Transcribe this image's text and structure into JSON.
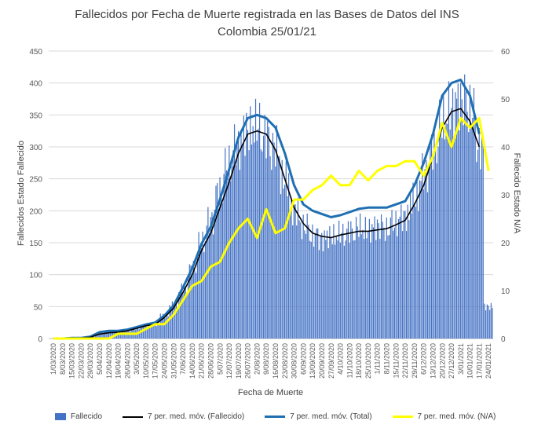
{
  "chart_data": {
    "type": "bar+line",
    "title": "Fallecidos por Fecha de Muerte registrada en las Bases de Datos del INS",
    "subtitle": "Colombia 25/01/21",
    "xlabel": "Fecha de Muerte",
    "ylabel_left": "Fallecidos Estado Fallecido",
    "ylabel_right": "Fallecido Estado N/A",
    "ylim_left": [
      0,
      450
    ],
    "ylim_right": [
      0,
      60
    ],
    "y_ticks_left": [
      "0",
      "50",
      "100",
      "150",
      "200",
      "250",
      "300",
      "350",
      "400",
      "450"
    ],
    "y_ticks_right": [
      "0",
      "10",
      "20",
      "30",
      "40",
      "50",
      "60"
    ],
    "x_tick_labels": [
      "1/03/2020",
      "8/03/2020",
      "15/03/2020",
      "22/03/2020",
      "29/03/2020",
      "5/04/2020",
      "12/04/2020",
      "19/04/2020",
      "26/04/2020",
      "3/05/2020",
      "10/05/2020",
      "17/05/2020",
      "24/05/2020",
      "31/05/2020",
      "7/06/2020",
      "14/06/2020",
      "21/06/2020",
      "28/06/2020",
      "5/07/2020",
      "12/07/2020",
      "19/07/2020",
      "26/07/2020",
      "2/08/2020",
      "9/08/2020",
      "16/08/2020",
      "23/08/2020",
      "30/08/2020",
      "6/09/2020",
      "13/09/2020",
      "20/09/2020",
      "27/09/2020",
      "4/10/2020",
      "11/10/2020",
      "18/10/2020",
      "25/10/2020",
      "1/11/2020",
      "8/11/2020",
      "15/11/2020",
      "22/11/2020",
      "29/11/2020",
      "6/12/2020",
      "13/12/2020",
      "20/12/2020",
      "27/12/2020",
      "3/01/2021",
      "10/01/2021",
      "17/01/2021",
      "24/01/2021"
    ],
    "grid": true,
    "legend_position": "bottom",
    "colors": {
      "fallecido_bar": "#4472C4",
      "ma_fallecido": "#000000",
      "ma_total": "#1F6FB2",
      "ma_na": "#FFFF00"
    },
    "series": [
      {
        "name": "Fallecido",
        "type": "bar",
        "axis": "left",
        "note_values_weekly_start": "1/03/2020",
        "values": [
          0,
          0,
          1,
          1,
          3,
          8,
          11,
          10,
          12,
          16,
          20,
          22,
          36,
          52,
          78,
          110,
          150,
          185,
          230,
          270,
          300,
          325,
          335,
          320,
          300,
          250,
          200,
          175,
          160,
          155,
          160,
          165,
          170,
          175,
          170,
          175,
          170,
          180,
          190,
          220,
          260,
          300,
          340,
          360,
          370,
          355,
          300,
          50
        ]
      },
      {
        "name": "7 per. med. móv. (Fallecido)",
        "type": "line",
        "axis": "left",
        "values": [
          0,
          0,
          1,
          1,
          2,
          7,
          9,
          10,
          12,
          16,
          20,
          22,
          33,
          48,
          72,
          100,
          138,
          165,
          205,
          245,
          290,
          320,
          325,
          320,
          295,
          250,
          205,
          180,
          165,
          160,
          158,
          162,
          165,
          168,
          168,
          170,
          172,
          178,
          185,
          210,
          240,
          285,
          330,
          355,
          360,
          340,
          300,
          null
        ]
      },
      {
        "name": "7 per. med. móv. (Total)",
        "type": "line",
        "axis": "left",
        "values": [
          0,
          0,
          1,
          1,
          3,
          10,
          12,
          12,
          14,
          18,
          22,
          25,
          36,
          52,
          80,
          110,
          148,
          175,
          218,
          265,
          315,
          345,
          350,
          345,
          330,
          290,
          240,
          210,
          200,
          195,
          190,
          193,
          198,
          203,
          205,
          205,
          205,
          210,
          215,
          240,
          275,
          320,
          380,
          400,
          405,
          380,
          320,
          null
        ]
      },
      {
        "name": "7 per. med. móv. (N/A)",
        "type": "line",
        "axis": "right",
        "values": [
          0,
          0,
          0,
          0,
          0,
          0,
          0,
          1,
          1,
          1,
          2,
          3,
          3,
          5,
          8,
          11,
          12,
          15,
          16,
          20,
          23,
          25,
          21,
          27,
          22,
          23,
          29,
          29,
          31,
          32,
          34,
          32,
          32,
          35,
          33,
          35,
          36,
          36,
          37,
          37,
          34,
          38,
          45,
          40,
          46,
          44,
          46,
          35
        ]
      }
    ]
  },
  "legend": {
    "items": [
      {
        "label": "Fallecido"
      },
      {
        "label": "7 per. med. móv. (Fallecido)"
      },
      {
        "label": "7 per. med. móv. (Total)"
      },
      {
        "label": "7 per. med. móv. (N/A)"
      }
    ]
  }
}
